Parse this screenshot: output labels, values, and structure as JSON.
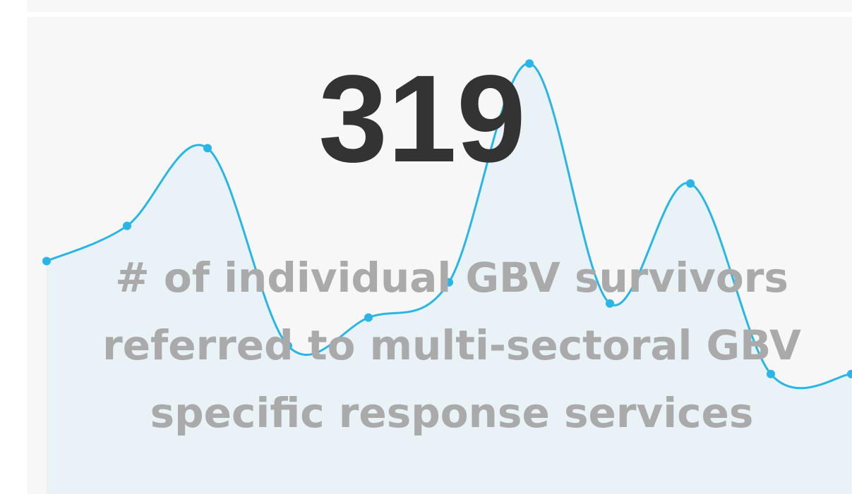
{
  "chart_data": {
    "type": "line",
    "value": "319",
    "label": "# of individual GBV survivors referred to multi-sectoral GBV specific response services",
    "values": [
      33,
      38,
      49,
      21,
      25,
      30,
      61,
      27,
      44,
      17,
      17
    ],
    "color": "#29b6e6",
    "ylim": [
      0,
      70
    ]
  }
}
